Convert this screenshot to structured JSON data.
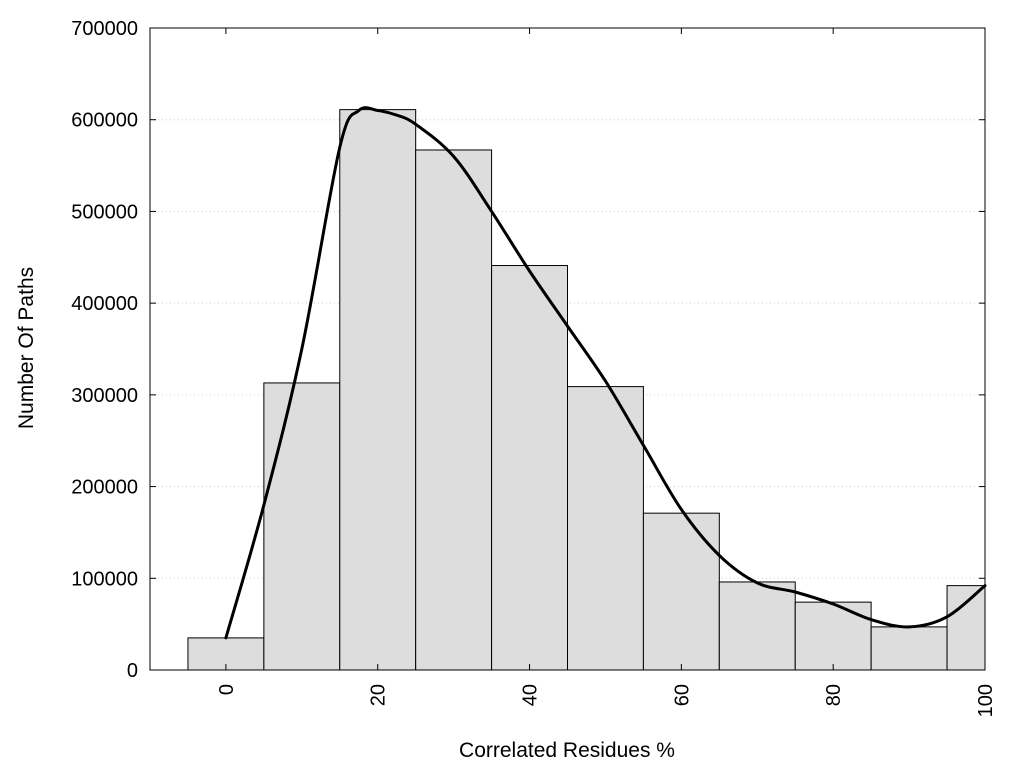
{
  "chart_data": {
    "type": "bar",
    "title": "",
    "xlabel": "Correlated Residues %",
    "ylabel": "Number Of Paths",
    "xlim": [
      -10,
      100
    ],
    "ylim": [
      0,
      700000
    ],
    "x_ticks": [
      0,
      20,
      40,
      60,
      80,
      100
    ],
    "y_ticks": [
      0,
      100000,
      200000,
      300000,
      400000,
      500000,
      600000,
      700000
    ],
    "grid": "horizontal-dotted",
    "bar_color": "#dddddd",
    "bar_edge_color": "#000000",
    "bars": [
      {
        "x": 0,
        "value": 35000
      },
      {
        "x": 10,
        "value": 313000
      },
      {
        "x": 20,
        "value": 611000
      },
      {
        "x": 30,
        "value": 567000
      },
      {
        "x": 40,
        "value": 441000
      },
      {
        "x": 50,
        "value": 309000
      },
      {
        "x": 60,
        "value": 171000
      },
      {
        "x": 70,
        "value": 96000
      },
      {
        "x": 80,
        "value": 74000
      },
      {
        "x": 90,
        "value": 47000
      },
      {
        "x": 100,
        "value": 92000
      }
    ],
    "curve": {
      "type": "line",
      "color": "#000000",
      "x": [
        0,
        5,
        10,
        15,
        17.5,
        20,
        22.5,
        25,
        30,
        35,
        40,
        45,
        50,
        55,
        60,
        65,
        70,
        75,
        80,
        85,
        90,
        95,
        100
      ],
      "values": [
        35000,
        180000,
        350000,
        570000,
        610000,
        610000,
        605000,
        595000,
        560000,
        500000,
        435000,
        375000,
        315000,
        245000,
        175000,
        125000,
        95000,
        85000,
        72000,
        55000,
        47000,
        58000,
        92000
      ]
    }
  }
}
